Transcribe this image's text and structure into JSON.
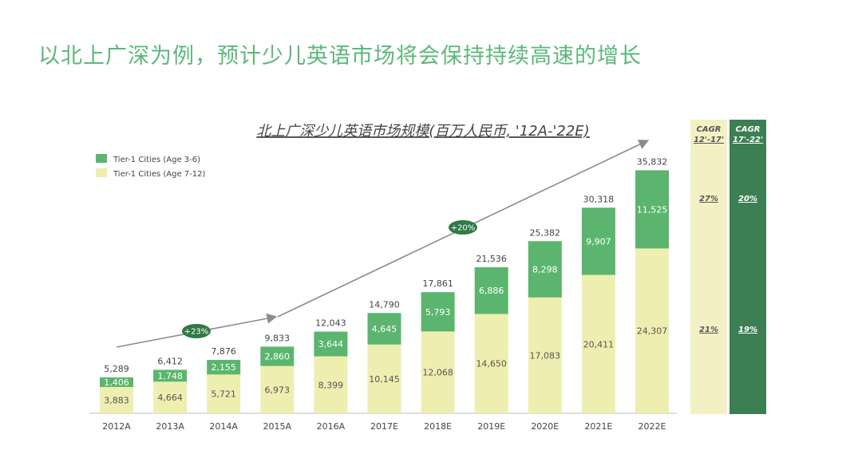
{
  "page": {
    "title": "以北上广深为例，预计少儿英语市场将会保持持续高速的增长"
  },
  "colors": {
    "title": "#5bb87a",
    "dark_series": "#5bb56e",
    "light_series": "#eeeeb0",
    "cagr_light_bg": "#f3f0c4",
    "cagr_dark_bg": "#3c7f53",
    "arrow": "#8c8c8c",
    "growth_badge": "#2f7a45"
  },
  "chart_data": {
    "type": "bar",
    "stacked": true,
    "title": "北上广深少儿英语市场规模(百万人民币, '12A-'22E)",
    "xlabel": "",
    "ylabel": "",
    "ylim": [
      0,
      36000
    ],
    "categories": [
      "2012A",
      "2013A",
      "2014A",
      "2015A",
      "2016A",
      "2017E",
      "2018E",
      "2019E",
      "2020E",
      "2021E",
      "2022E"
    ],
    "series": [
      {
        "name": "Tier-1 Cities (Age 7-12)",
        "color": "#eeeeb0",
        "values": [
          3883,
          4664,
          5721,
          6973,
          8399,
          10145,
          12068,
          14650,
          17083,
          20411,
          24307
        ],
        "labels": [
          "3,883",
          "4,664",
          "5,721",
          "6,973",
          "8,399",
          "10,145",
          "12,068",
          "14,650",
          "17,083",
          "20,411",
          "24,307"
        ]
      },
      {
        "name": "Tier-1 Cities (Age 3-6)",
        "color": "#5bb56e",
        "values": [
          1406,
          1748,
          2155,
          2860,
          3644,
          4645,
          5793,
          6886,
          8298,
          9907,
          11525
        ],
        "labels": [
          "1,406",
          "1,748",
          "2,155",
          "2,860",
          "3,644",
          "4,645",
          "5,793",
          "6,886",
          "8,298",
          "9,907",
          "11,525"
        ]
      }
    ],
    "totals": [
      5289,
      6412,
      7876,
      9833,
      12043,
      14790,
      17861,
      21536,
      25382,
      30318,
      35832
    ],
    "total_labels": [
      "5,289",
      "6,412",
      "7,876",
      "9,833",
      "12,043",
      "14,790",
      "17,861",
      "21,536",
      "25,382",
      "30,318",
      "35,832"
    ],
    "legend": {
      "placement": "top-left",
      "entries": [
        {
          "label": "Tier-1 Cities (Age 3-6)",
          "color": "#5bb56e"
        },
        {
          "label": "Tier-1 Cities (Age 7-12)",
          "color": "#eeeeb0"
        }
      ]
    },
    "growth_annotations": [
      {
        "label": "+23%",
        "from": "2012A",
        "to": "2015A"
      },
      {
        "label": "+20%",
        "from": "2015A",
        "to": "2022E"
      }
    ],
    "cagr_table": {
      "columns": [
        {
          "header_line1": "CAGR",
          "header_line2": "12'-17'",
          "values": {
            "Tier-1 Cities (Age 3-6)": "27%",
            "Tier-1 Cities (Age 7-12)": "21%"
          }
        },
        {
          "header_line1": "CAGR",
          "header_line2": "17'-22'",
          "values": {
            "Tier-1 Cities (Age 3-6)": "20%",
            "Tier-1 Cities (Age 7-12)": "19%"
          }
        }
      ]
    }
  }
}
